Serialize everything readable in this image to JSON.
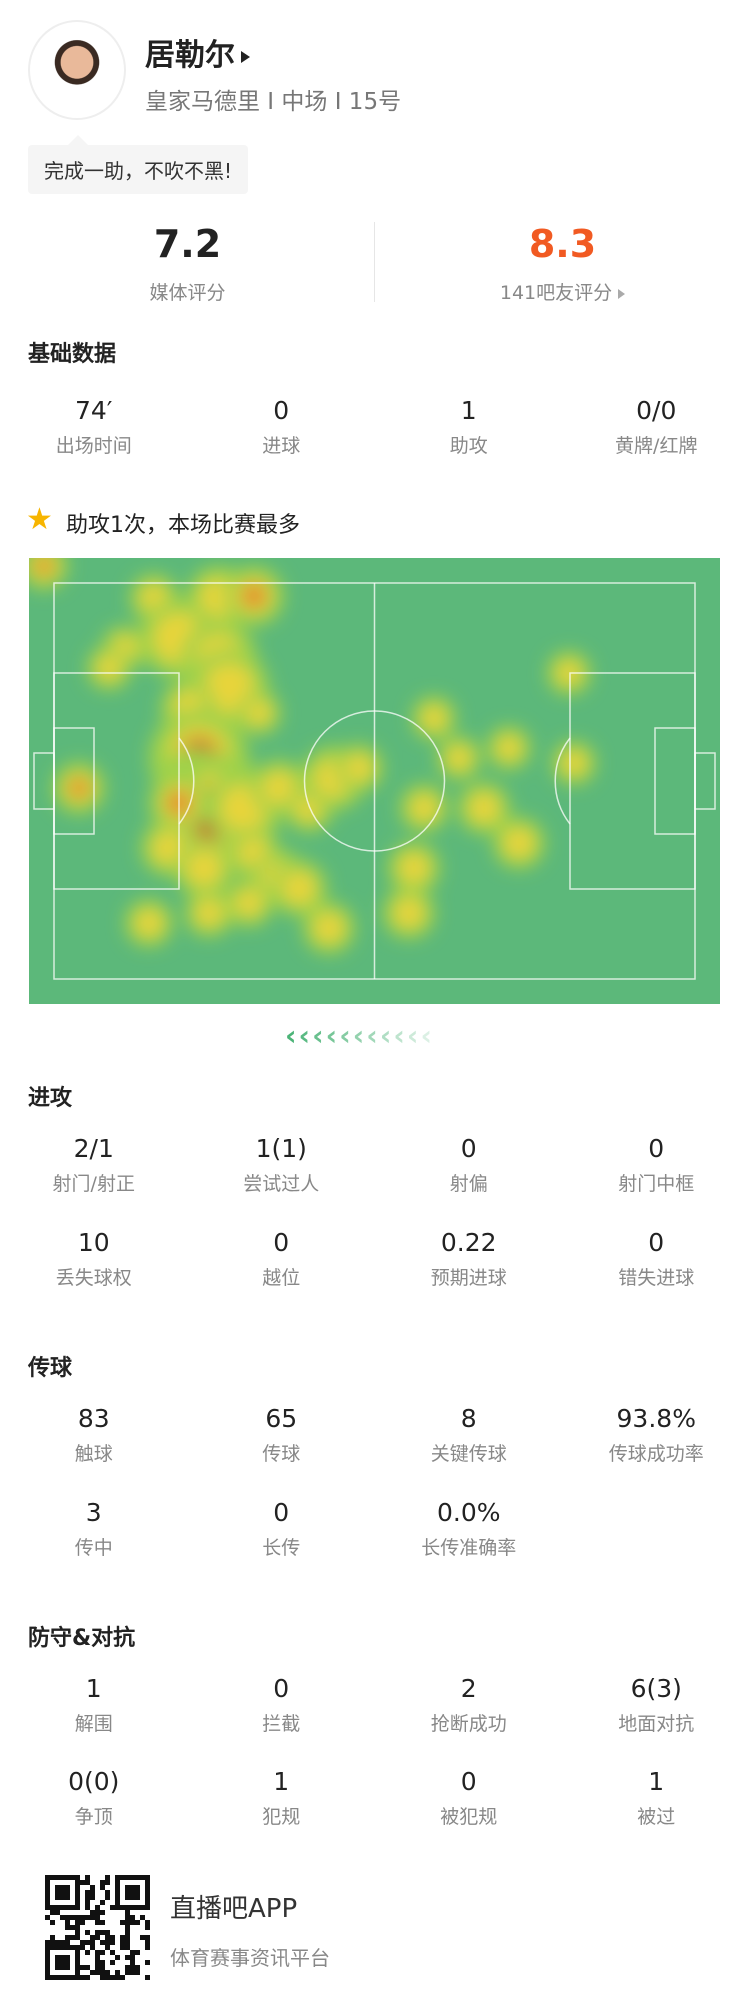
{
  "player": {
    "name": "居勒尔",
    "info": "皇家马德里 I 中场 I 15号",
    "comment": "完成一助，不吹不黑!"
  },
  "ratings": {
    "media": {
      "value": "7.2",
      "label": "媒体评分"
    },
    "fans": {
      "value": "8.3",
      "label": "141吧友评分",
      "color": "#f15a22"
    }
  },
  "basic": {
    "title": "基础数据",
    "items": [
      {
        "v": "74′",
        "l": "出场时间"
      },
      {
        "v": "0",
        "l": "进球"
      },
      {
        "v": "1",
        "l": "助攻"
      },
      {
        "v": "0/0",
        "l": "黄牌/红牌"
      }
    ]
  },
  "highlight": {
    "icon": "star-icon",
    "text": "助攻1次，本场比赛最多"
  },
  "heatmap": {
    "pitch_color": "#5cb87a"
  },
  "attack": {
    "title": "进攻",
    "items": [
      {
        "v": "2/1",
        "l": "射门/射正"
      },
      {
        "v": "1(1)",
        "l": "尝试过人"
      },
      {
        "v": "0",
        "l": "射偏"
      },
      {
        "v": "0",
        "l": "射门中框"
      },
      {
        "v": "10",
        "l": "丢失球权"
      },
      {
        "v": "0",
        "l": "越位"
      },
      {
        "v": "0.22",
        "l": "预期进球"
      },
      {
        "v": "0",
        "l": "错失进球"
      }
    ]
  },
  "passing": {
    "title": "传球",
    "items": [
      {
        "v": "83",
        "l": "触球"
      },
      {
        "v": "65",
        "l": "传球"
      },
      {
        "v": "8",
        "l": "关键传球"
      },
      {
        "v": "93.8%",
        "l": "传球成功率"
      },
      {
        "v": "3",
        "l": "传中"
      },
      {
        "v": "0",
        "l": "长传"
      },
      {
        "v": "0.0%",
        "l": "长传准确率"
      }
    ]
  },
  "defense": {
    "title": "防守&对抗",
    "items": [
      {
        "v": "1",
        "l": "解围"
      },
      {
        "v": "0",
        "l": "拦截"
      },
      {
        "v": "2",
        "l": "抢断成功"
      },
      {
        "v": "6(3)",
        "l": "地面对抗"
      },
      {
        "v": "0(0)",
        "l": "争顶"
      },
      {
        "v": "1",
        "l": "犯规"
      },
      {
        "v": "0",
        "l": "被犯规"
      },
      {
        "v": "1",
        "l": "被过"
      }
    ]
  },
  "footer": {
    "app": "直播吧APP",
    "tagline": "体育赛事资讯平台"
  }
}
